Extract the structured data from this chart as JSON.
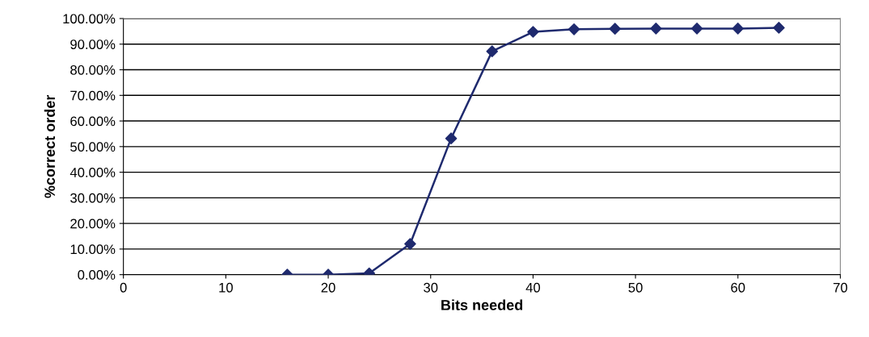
{
  "chart_data": {
    "type": "line",
    "xlabel": "Bits needed",
    "ylabel": "%correct order",
    "x": [
      16,
      20,
      24,
      28,
      32,
      36,
      40,
      44,
      48,
      52,
      56,
      60,
      64
    ],
    "series": [
      {
        "color": "#1f2a6e",
        "values": [
          0,
          0,
          0.5,
          12,
          53.2,
          87.2,
          94.8,
          95.8,
          96,
          96.1,
          96.1,
          96.1,
          96.4
        ]
      }
    ],
    "xlim": [
      0,
      70
    ],
    "xticks": [
      0,
      10,
      20,
      30,
      40,
      50,
      60,
      70
    ],
    "ylim": [
      0,
      100
    ],
    "yticks": [
      {
        "value": 0,
        "label": "0.00%"
      },
      {
        "value": 10,
        "label": "10.00%"
      },
      {
        "value": 20,
        "label": "20.00%"
      },
      {
        "value": 30,
        "label": "30.00%"
      },
      {
        "value": 40,
        "label": "40.00%"
      },
      {
        "value": 50,
        "label": "50.00%"
      },
      {
        "value": 60,
        "label": "60.00%"
      },
      {
        "value": 70,
        "label": "70.00%"
      },
      {
        "value": 80,
        "label": "80.00%"
      },
      {
        "value": 90,
        "label": "90.00%"
      },
      {
        "value": 100,
        "label": "100.00%"
      }
    ],
    "grid": "y",
    "marker": "diamond",
    "line_style": "solid"
  }
}
